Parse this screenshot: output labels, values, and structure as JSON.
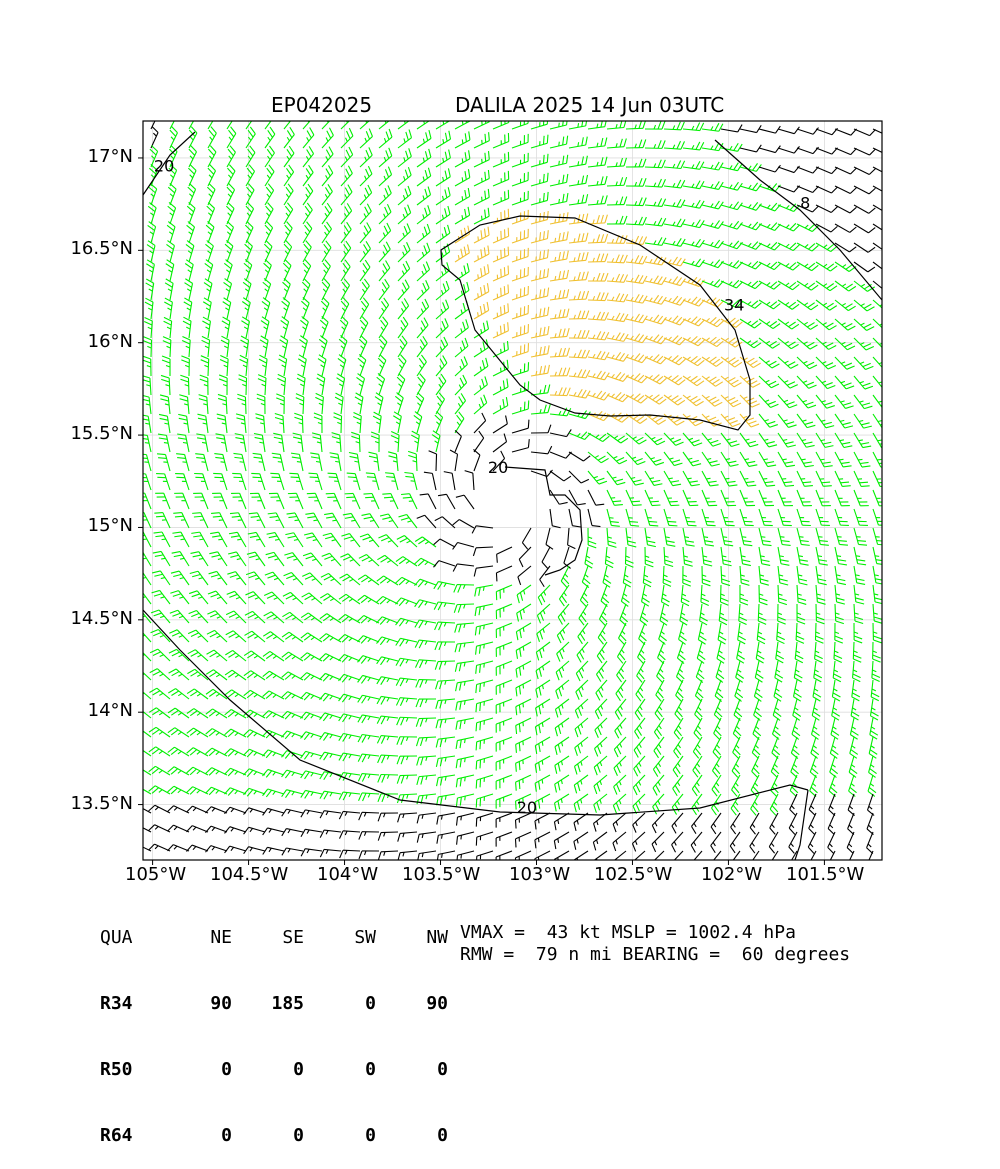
{
  "title": {
    "storm_id": "EP042025",
    "storm_label": "DALILA 2025 14 Jun 03UTC"
  },
  "map": {
    "lon_range": [
      -105.05,
      -101.2
    ],
    "lat_range": [
      13.2,
      17.2
    ],
    "center": {
      "lon": -103.15,
      "lat": 15.15
    },
    "y_ticks": [
      {
        "lat": 17.0,
        "label": "17°N"
      },
      {
        "lat": 16.5,
        "label": "16.5°N"
      },
      {
        "lat": 16.0,
        "label": "16°N"
      },
      {
        "lat": 15.5,
        "label": "15.5°N"
      },
      {
        "lat": 15.0,
        "label": "15°N"
      },
      {
        "lat": 14.5,
        "label": "14.5°N"
      },
      {
        "lat": 14.0,
        "label": "14°N"
      },
      {
        "lat": 13.5,
        "label": "13.5°N"
      }
    ],
    "x_ticks": [
      {
        "lon": -105.0,
        "label": "105°W"
      },
      {
        "lon": -104.5,
        "label": "104.5°W"
      },
      {
        "lon": -104.0,
        "label": "104°W"
      },
      {
        "lon": -103.5,
        "label": "103.5°W"
      },
      {
        "lon": -103.0,
        "label": "103°W"
      },
      {
        "lon": -102.5,
        "label": "102.5°W"
      },
      {
        "lon": -102.0,
        "label": "102°W"
      },
      {
        "lon": -101.5,
        "label": "101.5°W"
      }
    ],
    "contour_labels": [
      {
        "text": "20",
        "lon": -104.94,
        "lat": 16.95
      },
      {
        "text": "20",
        "lon": -103.2,
        "lat": 15.32
      },
      {
        "text": "20",
        "lon": -103.05,
        "lat": 13.48
      },
      {
        "text": "34",
        "lon": -101.97,
        "lat": 16.2
      },
      {
        "text": "8",
        "lon": -101.6,
        "lat": 16.75
      }
    ],
    "barb_colors": {
      "below_20": "#000000",
      "20_to_34": "#00ee00",
      "above_34": "#f0c030"
    }
  },
  "wind_radii": {
    "header": [
      "QUA",
      "NE",
      "SE",
      "SW",
      "NW"
    ],
    "rows": [
      {
        "label": "R34",
        "values": [
          "90",
          "185",
          "0",
          "90"
        ]
      },
      {
        "label": "R50",
        "values": [
          "0",
          "0",
          "0",
          "0"
        ]
      },
      {
        "label": "R64",
        "values": [
          "0",
          "0",
          "0",
          "0"
        ]
      }
    ]
  },
  "info": {
    "line1": "VMAX =  43 kt MSLP = 1002.4 hPa",
    "line2": "RMW =  79 n mi BEARING =  60 degrees"
  }
}
